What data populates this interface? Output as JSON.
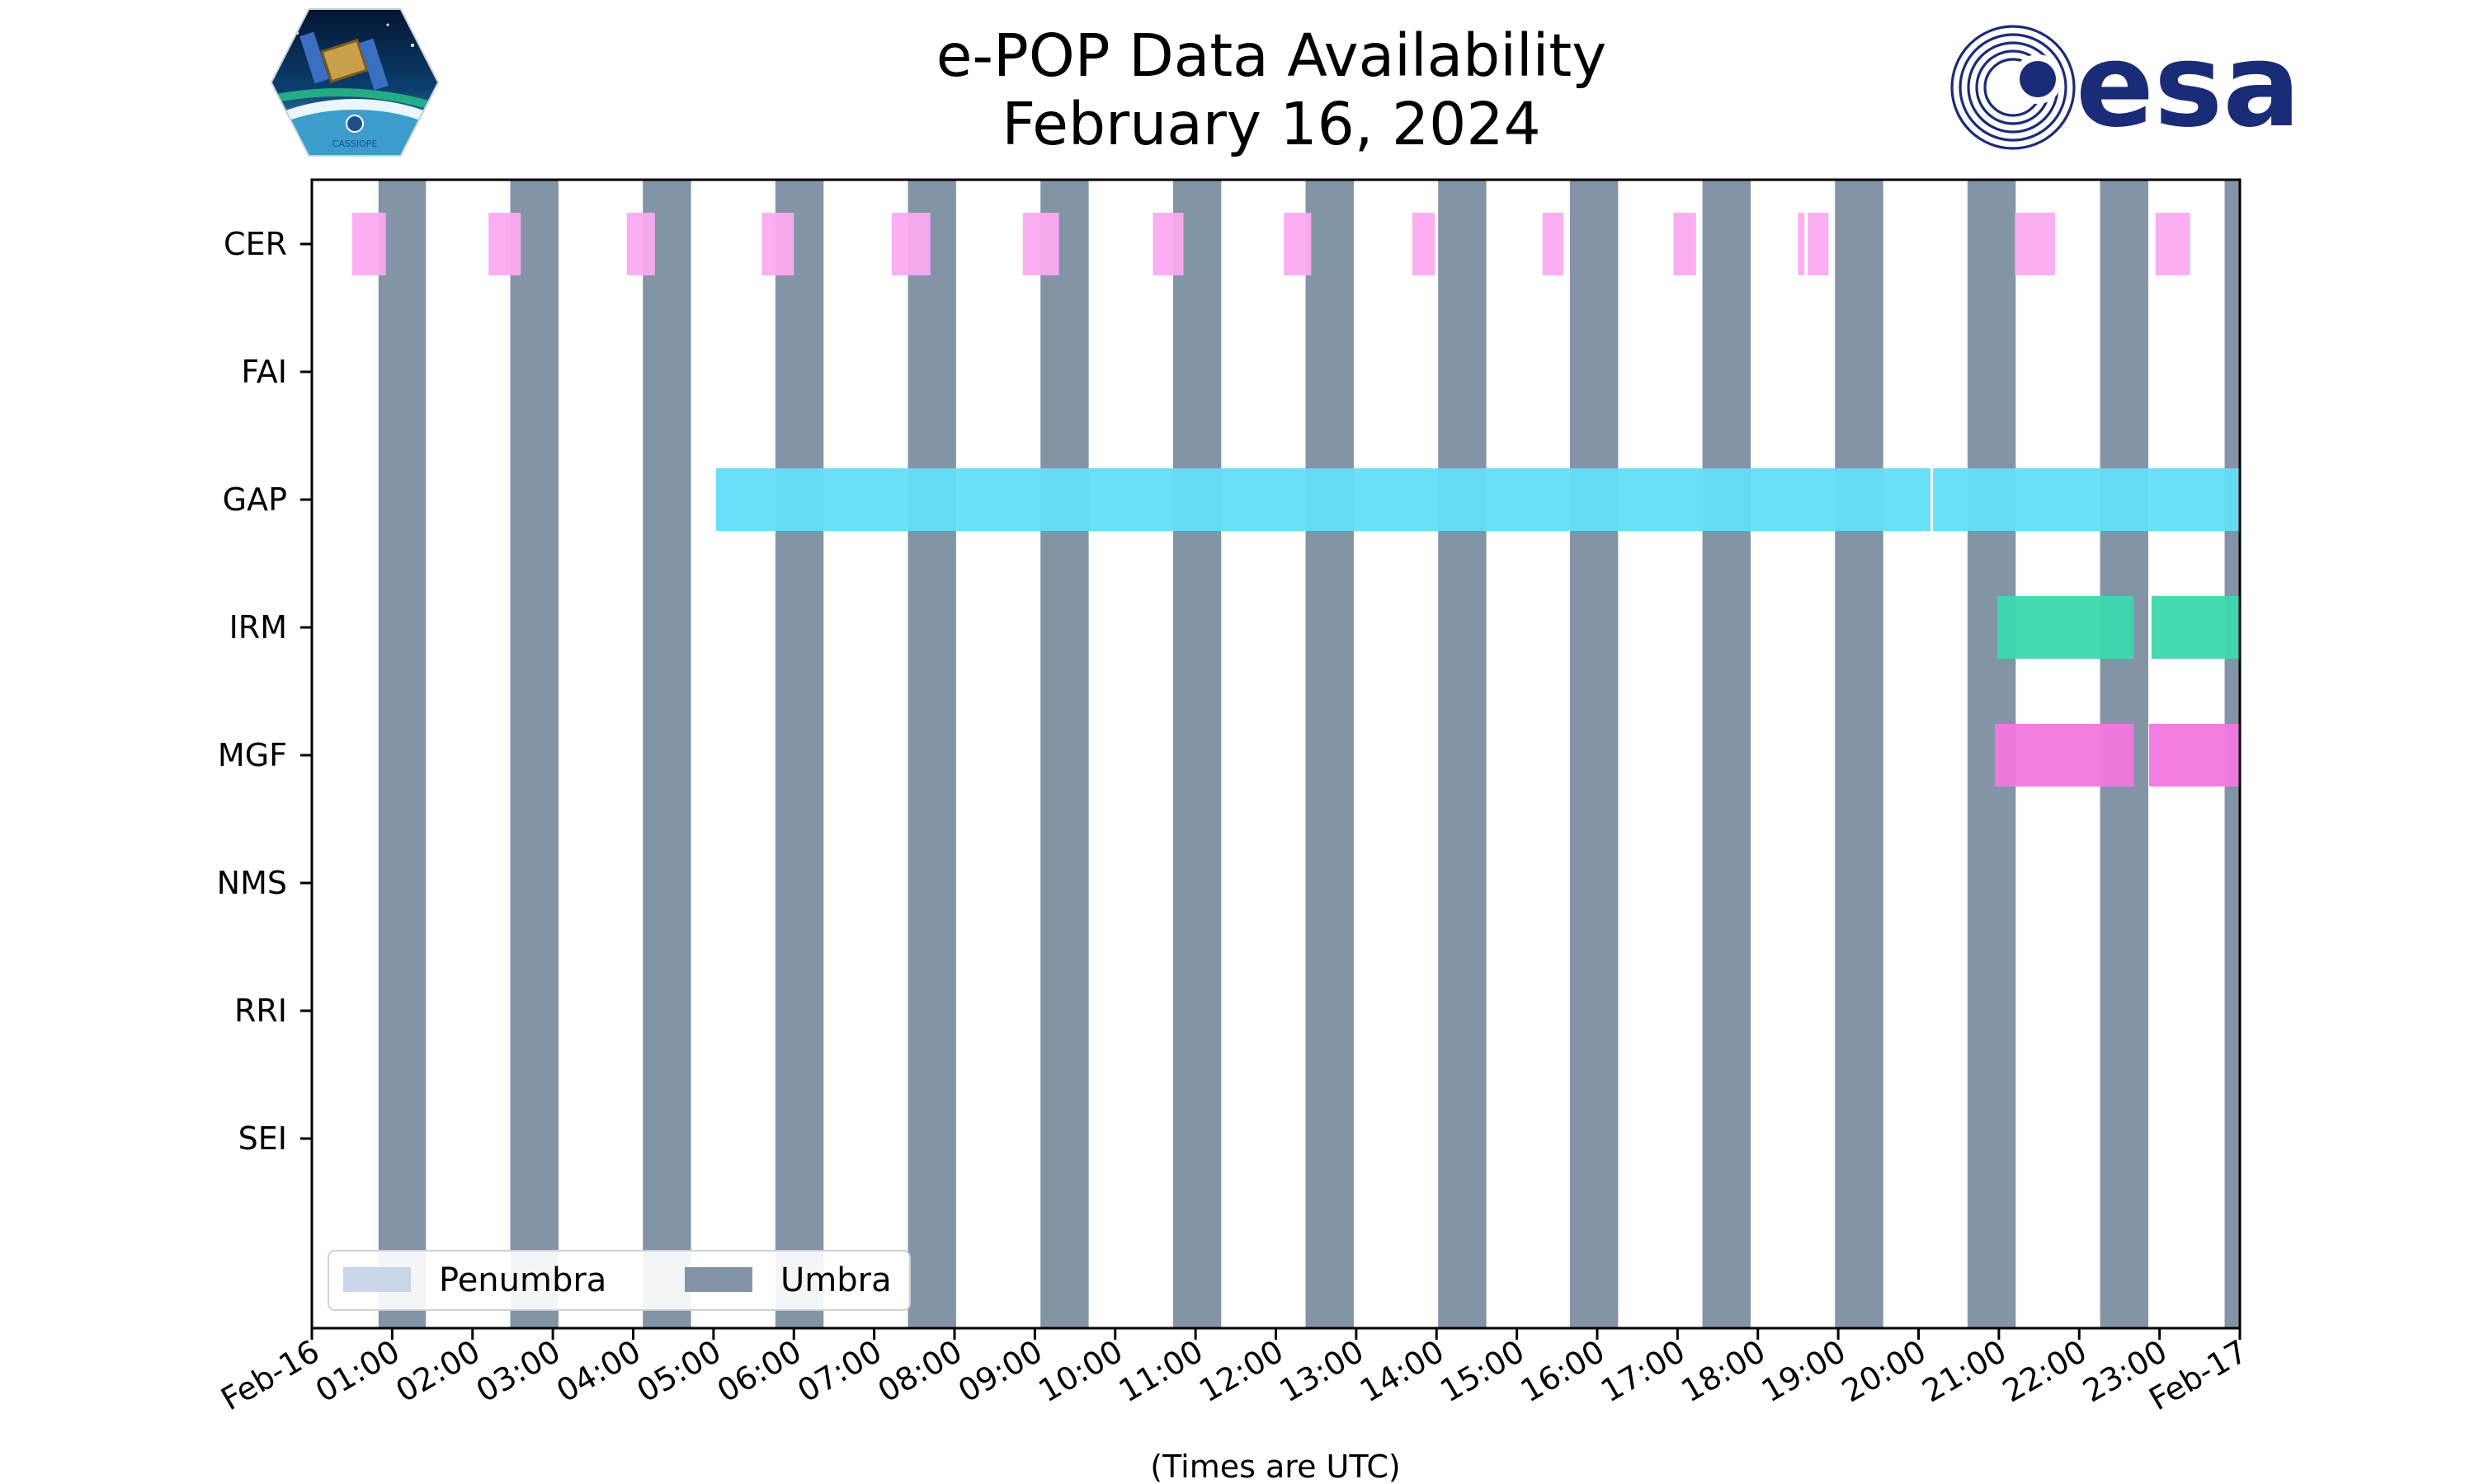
{
  "title": [
    "e-POP Data Availability",
    "February 16, 2024"
  ],
  "logos": {
    "left": {
      "name": "cassiope-mission-logo",
      "text": "CASSIOPE"
    },
    "right": {
      "name": "esa-logo",
      "text": "esa"
    }
  },
  "colors": {
    "umbra": "#8394a7",
    "penumbra": "#c8d6e6",
    "CER": "#fbaaf0",
    "GAP": "#62def7",
    "IRM": "#3cd8ad",
    "MGF": "#f277df"
  },
  "chart_data": {
    "type": "timeline",
    "title": "e-POP Data Availability\nFebruary 16, 2024",
    "xlabel": "(Times are UTC)",
    "xlim": [
      0,
      24
    ],
    "x_ticks": [
      "Feb-16",
      "01:00",
      "02:00",
      "03:00",
      "04:00",
      "05:00",
      "06:00",
      "07:00",
      "08:00",
      "09:00",
      "10:00",
      "11:00",
      "12:00",
      "13:00",
      "14:00",
      "15:00",
      "16:00",
      "17:00",
      "18:00",
      "19:00",
      "20:00",
      "21:00",
      "22:00",
      "23:00",
      "Feb-17"
    ],
    "categories": [
      "CER",
      "FAI",
      "GAP",
      "IRM",
      "MGF",
      "NMS",
      "RRI",
      "SEI"
    ],
    "series": [
      {
        "name": "CER",
        "intervals_hours": [
          [
            0.5,
            0.92
          ],
          [
            2.2,
            2.6
          ],
          [
            3.92,
            4.27
          ],
          [
            5.6,
            6.0
          ],
          [
            7.22,
            7.7
          ],
          [
            8.85,
            9.3
          ],
          [
            10.47,
            10.85
          ],
          [
            12.1,
            12.44
          ],
          [
            13.7,
            13.98
          ],
          [
            15.32,
            15.58
          ],
          [
            16.95,
            17.23
          ],
          [
            18.5,
            18.58
          ],
          [
            18.62,
            18.88
          ],
          [
            21.2,
            21.7
          ],
          [
            22.95,
            23.38
          ]
        ]
      },
      {
        "name": "FAI",
        "intervals_hours": []
      },
      {
        "name": "GAP",
        "intervals_hours": [
          [
            5.03,
            20.15
          ],
          [
            20.18,
            24.0
          ]
        ]
      },
      {
        "name": "IRM",
        "intervals_hours": [
          [
            20.98,
            22.68
          ],
          [
            22.9,
            24.0
          ]
        ]
      },
      {
        "name": "MGF",
        "intervals_hours": [
          [
            20.95,
            22.68
          ],
          [
            22.87,
            24.0
          ]
        ]
      },
      {
        "name": "NMS",
        "intervals_hours": []
      },
      {
        "name": "RRI",
        "intervals_hours": []
      },
      {
        "name": "SEI",
        "intervals_hours": []
      }
    ],
    "umbra_intervals_hours": [
      [
        0.83,
        1.42
      ],
      [
        2.47,
        3.07
      ],
      [
        4.12,
        4.72
      ],
      [
        5.77,
        6.37
      ],
      [
        7.42,
        8.02
      ],
      [
        9.07,
        9.67
      ],
      [
        10.72,
        11.32
      ],
      [
        12.37,
        12.97
      ],
      [
        14.02,
        14.62
      ],
      [
        15.66,
        16.26
      ],
      [
        17.31,
        17.91
      ],
      [
        18.96,
        19.56
      ],
      [
        20.61,
        21.21
      ],
      [
        22.26,
        22.86
      ],
      [
        23.81,
        24.0
      ]
    ],
    "penumbra_intervals_hours": [],
    "legend": {
      "entries": [
        "Penumbra",
        "Umbra"
      ],
      "position": "lower-left"
    },
    "grid": false
  }
}
